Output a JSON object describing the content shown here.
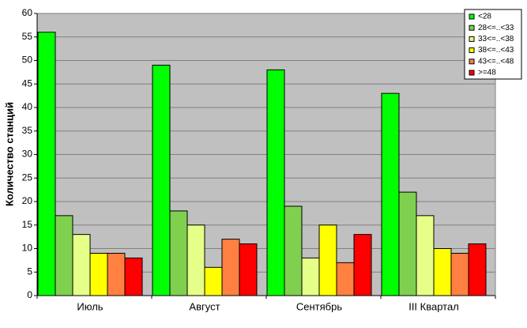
{
  "chart_data": {
    "type": "bar",
    "y_label": "Количество станций",
    "categories": [
      "Июль",
      "Август",
      "Сентябрь",
      "III Квартал"
    ],
    "series": [
      {
        "name": "<28",
        "color": "#00ff00",
        "values": [
          56,
          49,
          48,
          43
        ]
      },
      {
        "name": "28<=..<33",
        "color": "#80d050",
        "values": [
          17,
          18,
          19,
          22
        ]
      },
      {
        "name": "33<=..<38",
        "color": "#e6ff88",
        "values": [
          13,
          15,
          8,
          17
        ]
      },
      {
        "name": "38<=..<43",
        "color": "#ffff00",
        "values": [
          9,
          6,
          15,
          10
        ]
      },
      {
        "name": "43<=..<48",
        "color": "#ff8040",
        "values": [
          9,
          12,
          7,
          9
        ]
      },
      {
        "name": ">=48",
        "color": "#ff0000",
        "values": [
          8,
          11,
          13,
          11
        ]
      }
    ],
    "ylim": [
      0,
      60
    ],
    "yticks": [
      0,
      5,
      10,
      15,
      20,
      25,
      30,
      35,
      40,
      45,
      50,
      55,
      60
    ],
    "grid": true,
    "legend": "top-right"
  }
}
